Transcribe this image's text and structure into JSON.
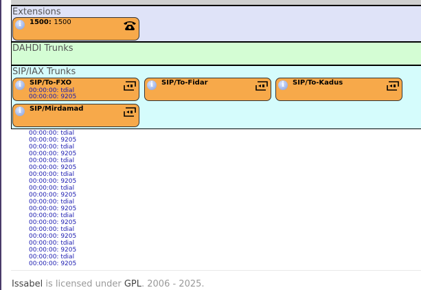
{
  "sections": {
    "extensions": {
      "title": "Extensions",
      "cards": [
        {
          "number": "1500:",
          "name": "1500",
          "icon": "telephone-icon"
        }
      ]
    },
    "dahdi": {
      "title": "DAHDI Trunks"
    },
    "sip": {
      "title": "SIP/IAX Trunks",
      "cards": [
        {
          "name": "SIP/To-FXO",
          "icon": "trunk-plug-icon",
          "calls": [
            "00:00:00: tdial",
            "00:00:00: 9205",
            "00:00:00: tdial",
            "00:00:00: 9205",
            "00:00:00: tdial",
            "00:00:00: 9205",
            "00:00:00: tdial",
            "00:00:00: 9205",
            "00:00:00: tdial",
            "00:00:00: 9205",
            "00:00:00: tdial",
            "00:00:00: 9205",
            "00:00:00: tdial",
            "00:00:00: 9205",
            "00:00:00: tdial",
            "00:00:00: 9205",
            "00:00:00: tdial",
            "00:00:00: 9205",
            "00:00:00: tdial",
            "00:00:00: 9205",
            "00:00:00: tdial",
            "00:00:00: 9205"
          ]
        },
        {
          "name": "SIP/To-Fidar",
          "icon": "trunk-plug-icon"
        },
        {
          "name": "SIP/To-Kadus",
          "icon": "trunk-plug-icon"
        },
        {
          "name": "SIP/Mirdamad",
          "icon": "trunk-plug-icon"
        }
      ]
    }
  },
  "footer": {
    "brand": "Issabel",
    "text1": " is licensed under ",
    "license": "GPL",
    "text2": ". 2006 - 2025."
  },
  "colors": {
    "card": "#f7a94a",
    "extensions_bg": "#dfe3f8",
    "dahdi_bg": "#d4fdd4",
    "sip_bg": "#d5fcfc",
    "call_text": "#1a1ab0"
  }
}
